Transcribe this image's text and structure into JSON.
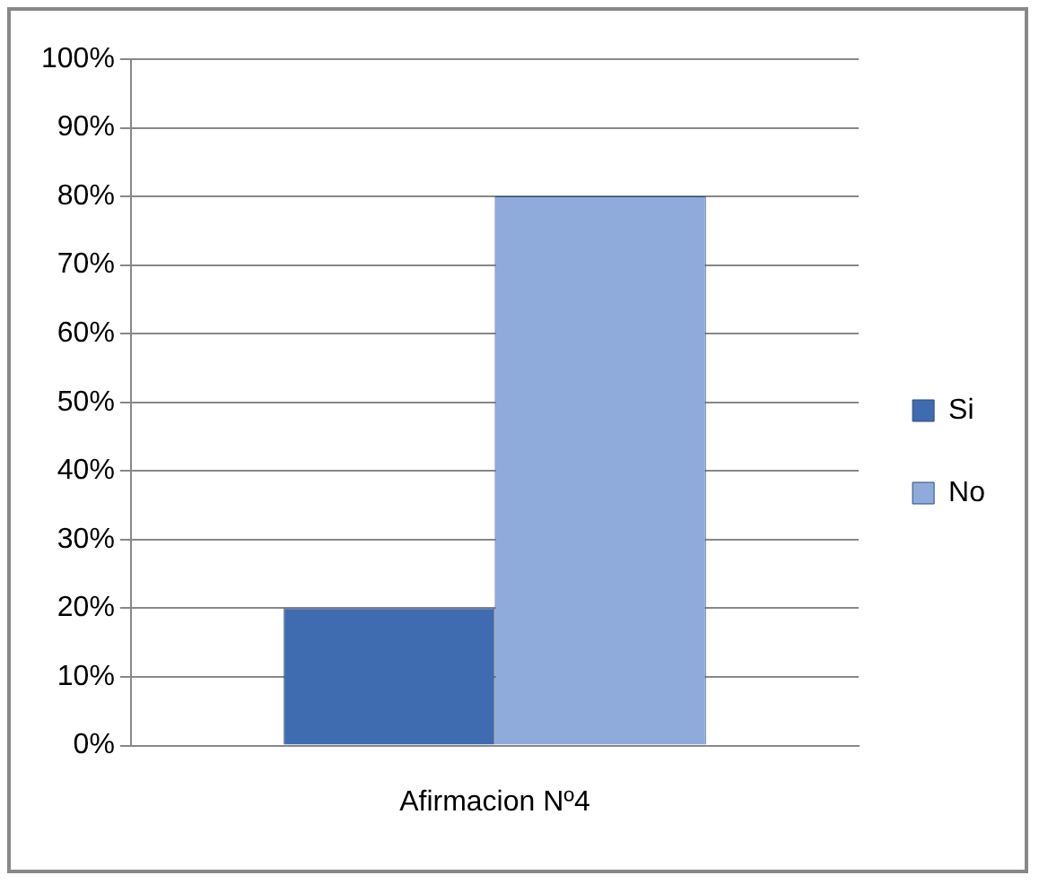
{
  "chart_data": {
    "type": "bar",
    "categories": [
      "Afirmacion Nº4"
    ],
    "series": [
      {
        "name": "Si",
        "color": "#3f6cb0",
        "values": [
          20
        ]
      },
      {
        "name": "No",
        "color": "#8fabdb",
        "values": [
          80
        ]
      }
    ],
    "ylim": [
      0,
      100
    ],
    "yticks": [
      {
        "value": 0,
        "label": "0%"
      },
      {
        "value": 10,
        "label": "10%"
      },
      {
        "value": 20,
        "label": "20%"
      },
      {
        "value": 30,
        "label": "30%"
      },
      {
        "value": 40,
        "label": "40%"
      },
      {
        "value": 50,
        "label": "50%"
      },
      {
        "value": 60,
        "label": "60%"
      },
      {
        "value": 70,
        "label": "70%"
      },
      {
        "value": 80,
        "label": "80%"
      },
      {
        "value": 90,
        "label": "90%"
      },
      {
        "value": 100,
        "label": "100%"
      }
    ],
    "grid": "y",
    "legend": "right"
  }
}
